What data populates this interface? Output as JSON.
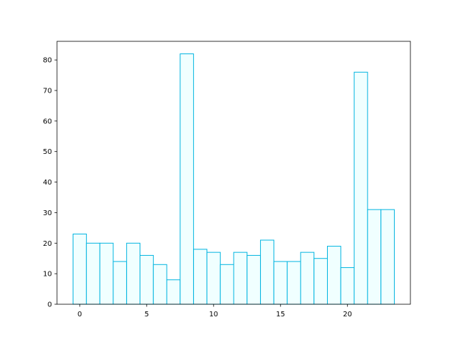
{
  "chart_data": {
    "type": "bar",
    "x": [
      0,
      1,
      2,
      3,
      4,
      5,
      6,
      7,
      8,
      9,
      10,
      11,
      12,
      13,
      14,
      15,
      16,
      17,
      18,
      19,
      20,
      21,
      22,
      23
    ],
    "values": [
      23,
      20,
      20,
      14,
      20,
      16,
      13,
      8,
      82,
      18,
      17,
      13,
      17,
      16,
      21,
      14,
      14,
      17,
      15,
      19,
      12,
      76,
      31,
      31
    ],
    "color": "#f0ffff",
    "edgecolor": "#00b4e0",
    "xlim": [
      -1.7,
      24.7
    ],
    "xticks": [
      0,
      5,
      10,
      15,
      20
    ],
    "ylim": [
      0,
      86.1
    ],
    "yticks": [
      0,
      10,
      20,
      30,
      40,
      50,
      60,
      70,
      80
    ],
    "grid": false
  }
}
